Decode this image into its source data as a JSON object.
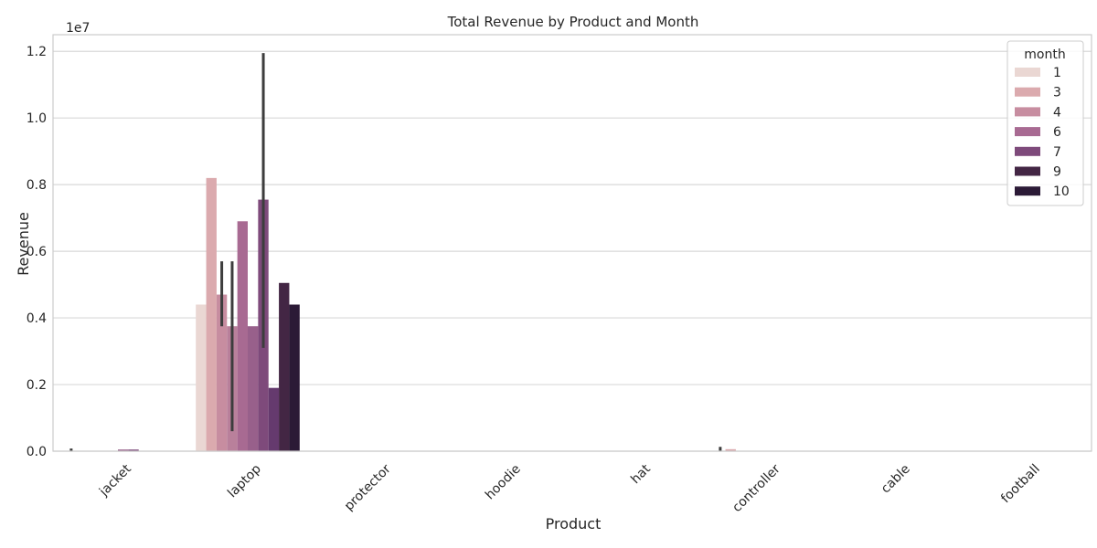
{
  "chart_data": {
    "type": "bar",
    "title": "Total Revenue by Product and Month",
    "xlabel": "Product",
    "ylabel": "Revenue",
    "y_offset_label": "1e7",
    "ylim": [
      0,
      12500000
    ],
    "y_ticks": [
      0,
      2000000,
      4000000,
      6000000,
      8000000,
      10000000,
      12000000
    ],
    "y_tick_labels": [
      "0.0",
      "0.2",
      "0.4",
      "0.6",
      "0.8",
      "1.0",
      "1.2"
    ],
    "grid": true,
    "legend_title": "month",
    "legend_position": "top-right",
    "categories": [
      "jacket",
      "laptop",
      "protector",
      "hoodie",
      "hat",
      "controller",
      "cable",
      "football"
    ],
    "series": [
      {
        "name": "1",
        "color": "#ead7d3",
        "values": [
          0,
          4400000,
          0,
          0,
          0,
          0,
          0,
          0
        ]
      },
      {
        "name": "3",
        "color": "#dbaaae",
        "values": [
          0,
          8200000,
          0,
          0,
          0,
          60000,
          0,
          0
        ]
      },
      {
        "name": "4",
        "color": "#c78da0",
        "values": [
          0,
          4700000,
          0,
          0,
          0,
          0,
          0,
          0
        ]
      },
      {
        "name": "4",
        "color": "#b9809b",
        "values": [
          0,
          3750000,
          0,
          0,
          0,
          0,
          0,
          0
        ]
      },
      {
        "name": "6",
        "color": "#a86a92",
        "values": [
          0,
          6900000,
          0,
          0,
          0,
          0,
          0,
          0
        ]
      },
      {
        "name": "6",
        "color": "#98608b",
        "values": [
          50000,
          3750000,
          0,
          0,
          0,
          0,
          0,
          0
        ]
      },
      {
        "name": "7",
        "color": "#7e4a7b",
        "values": [
          50000,
          7550000,
          0,
          0,
          0,
          0,
          0,
          0
        ]
      },
      {
        "name": "7",
        "color": "#653a6e",
        "values": [
          0,
          1900000,
          0,
          0,
          0,
          0,
          0,
          0
        ]
      },
      {
        "name": "9",
        "color": "#432644",
        "values": [
          0,
          5050000,
          0,
          0,
          0,
          0,
          0,
          0
        ]
      },
      {
        "name": "10",
        "color": "#2b1a36",
        "values": [
          0,
          4400000,
          0,
          0,
          0,
          0,
          0,
          0
        ]
      }
    ],
    "error_bars": [
      {
        "category": "jacket",
        "series_index": 0,
        "low": 0,
        "high": 80000
      },
      {
        "category": "laptop",
        "series_index": 2,
        "low": 3750000,
        "high": 5700000
      },
      {
        "category": "laptop",
        "series_index": 3,
        "low": 600000,
        "high": 5700000
      },
      {
        "category": "laptop",
        "series_index": 6,
        "low": 3100000,
        "high": 11950000
      },
      {
        "category": "controller",
        "series_index": 0,
        "low": 0,
        "high": 130000
      }
    ],
    "legend_entries": [
      {
        "label": "1",
        "color": "#ead7d3"
      },
      {
        "label": "3",
        "color": "#dbaaae"
      },
      {
        "label": "4",
        "color": "#c78da0"
      },
      {
        "label": "6",
        "color": "#a86a92"
      },
      {
        "label": "7",
        "color": "#7e4a7b"
      },
      {
        "label": "9",
        "color": "#432644"
      },
      {
        "label": "10",
        "color": "#2b1a36"
      }
    ]
  }
}
